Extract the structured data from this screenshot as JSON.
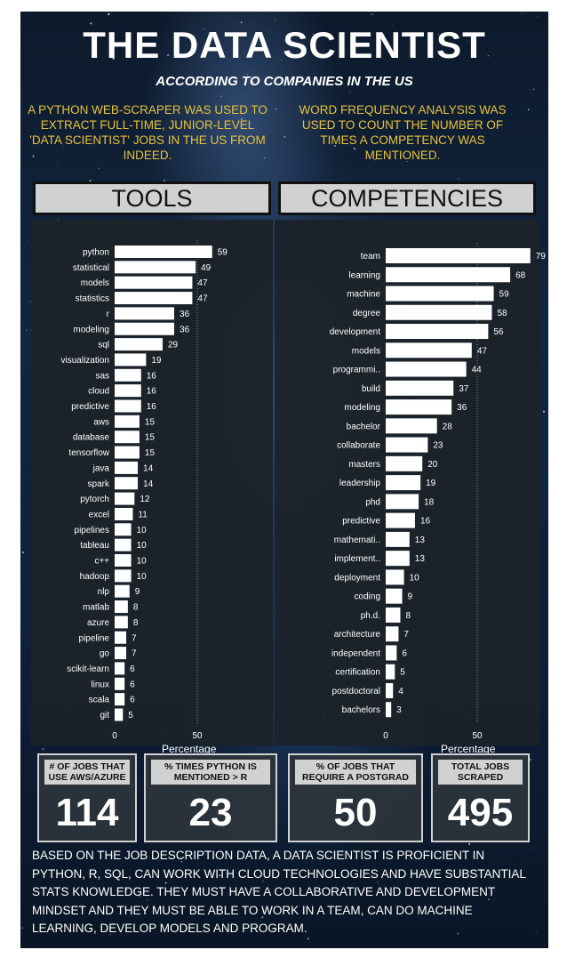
{
  "header": {
    "title": "THE DATA SCIENTIST",
    "subtitle": "ACCORDING TO COMPANIES IN THE US",
    "blurb_left": "A PYTHON WEB-SCRAPER WAS USED TO EXTRACT FULL-TIME, JUNIOR-LEVEL 'DATA SCIENTIST' JOBS IN THE US FROM INDEED.",
    "blurb_right": "WORD FREQUENCY ANALYSIS WAS USED TO COUNT THE NUMBER OF TIMES A COMPETENCY WAS MENTIONED."
  },
  "colors": {
    "accent": "#e8c23a",
    "bar": "#ffffff",
    "panel": "#1c2228",
    "label_bg": "#cfd1d3"
  },
  "sections": {
    "tools": "TOOLS",
    "competencies": "COMPETENCIES"
  },
  "chart_data": [
    {
      "type": "bar",
      "orientation": "horizontal",
      "title": "TOOLS",
      "xlabel": "Percentage",
      "xticks": [
        0,
        50
      ],
      "xlim": [
        0,
        60
      ],
      "categories": [
        "python",
        "statistical",
        "models",
        "statistics",
        "r",
        "modeling",
        "sql",
        "visualization",
        "sas",
        "cloud",
        "predictive",
        "aws",
        "database",
        "tensorflow",
        "java",
        "spark",
        "pytorch",
        "excel",
        "pipelines",
        "tableau",
        "c++",
        "hadoop",
        "nlp",
        "matlab",
        "azure",
        "pipeline",
        "go",
        "scikit-learn",
        "linux",
        "scala",
        "git"
      ],
      "values": [
        59,
        49,
        47,
        47,
        36,
        36,
        29,
        19,
        16,
        16,
        16,
        15,
        15,
        15,
        14,
        14,
        12,
        11,
        10,
        10,
        10,
        10,
        9,
        8,
        8,
        7,
        7,
        6,
        6,
        6,
        5
      ],
      "reference_line": 50
    },
    {
      "type": "bar",
      "orientation": "horizontal",
      "title": "COMPETENCIES",
      "xlabel": "Percentage",
      "xticks": [
        0,
        50
      ],
      "xlim": [
        0,
        80
      ],
      "categories": [
        "team",
        "learning",
        "machine",
        "degree",
        "development",
        "models",
        "programmi..",
        "build",
        "modeling",
        "bachelor",
        "collaborate",
        "masters",
        "leadership",
        "phd",
        "predictive",
        "mathemati..",
        "implement..",
        "deployment",
        "coding",
        "ph.d.",
        "architecture",
        "independent",
        "certification",
        "postdoctoral",
        "bachelors"
      ],
      "values": [
        79,
        68,
        59,
        58,
        56,
        47,
        44,
        37,
        36,
        28,
        23,
        20,
        19,
        18,
        16,
        13,
        13,
        10,
        9,
        8,
        7,
        6,
        5,
        4,
        3
      ],
      "reference_line": 50
    }
  ],
  "kpis": [
    {
      "label": "# OF JOBS THAT USE AWS/AZURE",
      "value": "114"
    },
    {
      "label": "% TIMES PYTHON IS MENTIONED > R",
      "value": "23"
    },
    {
      "label": "% OF JOBS THAT REQUIRE A POSTGRAD",
      "value": "50"
    },
    {
      "label": "TOTAL JOBS SCRAPED",
      "value": "495"
    }
  ],
  "summary": "BASED ON THE JOB DESCRIPTION DATA, A DATA SCIENTIST IS PROFICIENT IN PYTHON, R, SQL, CAN WORK WITH CLOUD TECHNOLOGIES AND HAVE SUBSTANTIAL STATS KNOWLEDGE. THEY MUST HAVE A COLLABORATIVE AND DEVELOPMENT MINDSET AND THEY MUST BE ABLE TO WORK IN A TEAM, CAN DO MACHINE LEARNING, DEVELOP MODELS AND PROGRAM."
}
